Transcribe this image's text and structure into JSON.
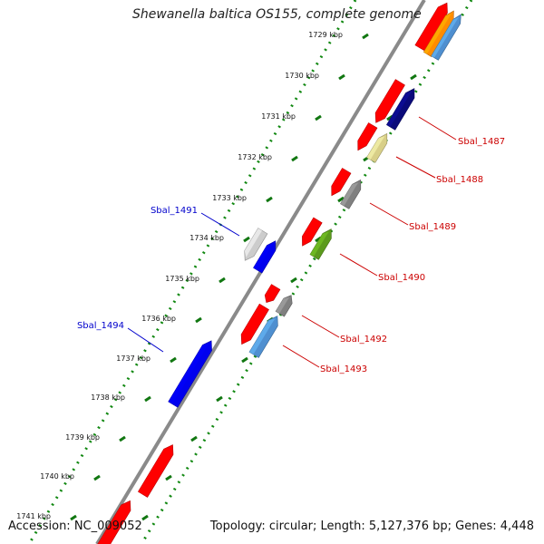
{
  "title": "Shewanella baltica OS155, complete genome",
  "footer": {
    "accession": "Accession: NC_009052",
    "summary": "Topology: circular; Length: 5,127,376 bp; Genes: 4,448"
  },
  "ruler": [
    {
      "label": "1729 kbp"
    },
    {
      "label": "1730 kbp"
    },
    {
      "label": "1731 kbp"
    },
    {
      "label": "1732 kbp"
    },
    {
      "label": "1733 kbp"
    },
    {
      "label": "1734 kbp"
    },
    {
      "label": "1735 kbp"
    },
    {
      "label": "1736 kbp"
    },
    {
      "label": "1737 kbp"
    },
    {
      "label": "1738 kbp"
    },
    {
      "label": "1739 kbp"
    },
    {
      "label": "1740 kbp"
    },
    {
      "label": "1741 kbp"
    }
  ],
  "gene_labels": [
    {
      "text": "Sbal_1487",
      "color": "#cc0000"
    },
    {
      "text": "Sbal_1488",
      "color": "#cc0000"
    },
    {
      "text": "Sbal_1489",
      "color": "#cc0000"
    },
    {
      "text": "Sbal_1490",
      "color": "#cc0000"
    },
    {
      "text": "Sbal_1491",
      "color": "#0000cc"
    },
    {
      "text": "Sbal_1492",
      "color": "#cc0000"
    },
    {
      "text": "Sbal_1493",
      "color": "#cc0000"
    },
    {
      "text": "Sbal_1494",
      "color": "#0000cc"
    }
  ],
  "colors": {
    "backbone": "#8a8a8a",
    "tick_dots": "#118811",
    "gene_red": "#ff0000",
    "gene_blue": "#0000ee",
    "gene_orange": "#ff8c00",
    "gene_steelblue": "#4f8fd0",
    "gene_navy": "#0a0a7a",
    "gene_khaki": "#d8cf88",
    "gene_gray": "#808080",
    "gene_olive": "#5b9a1c",
    "gene_lightgray": "#cccccc"
  }
}
